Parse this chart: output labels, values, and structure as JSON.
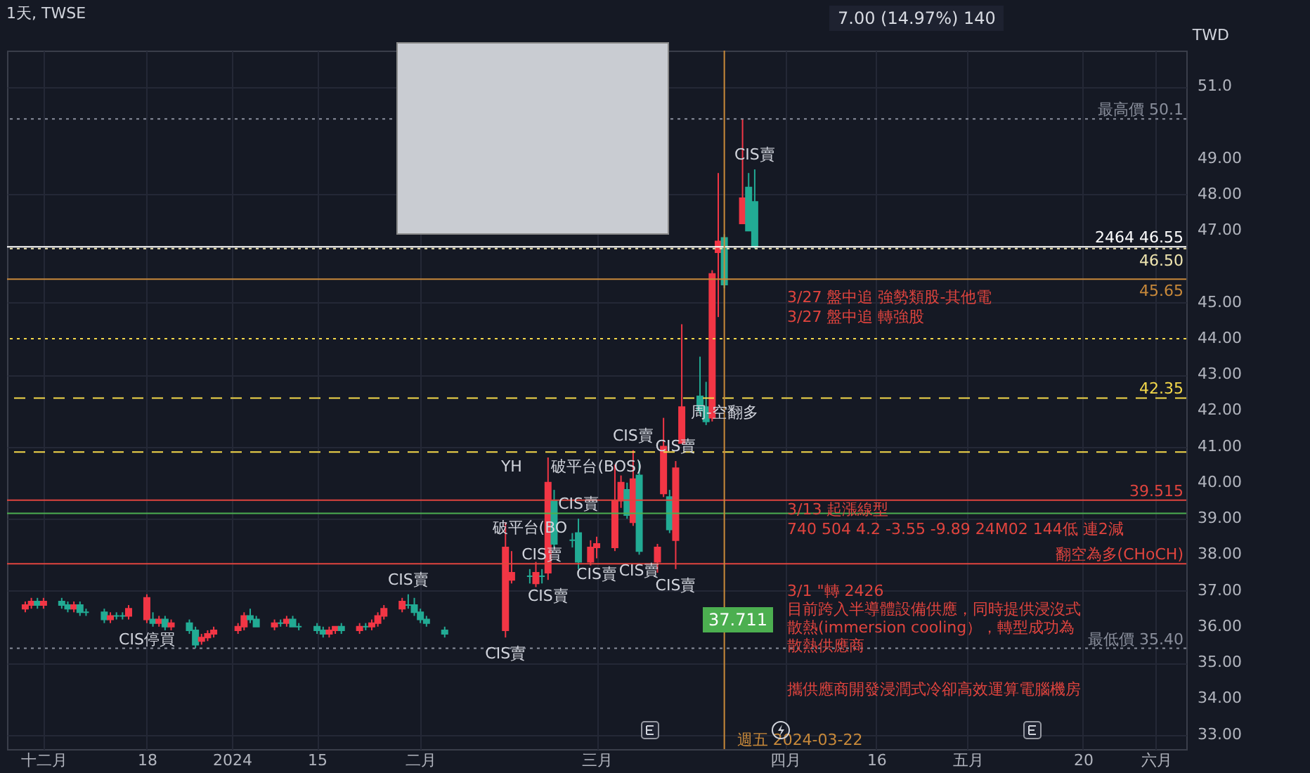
{
  "chart_data": {
    "type": "candlestick",
    "title": "1天, TWSE",
    "ylabel": "TWD",
    "x": [
      "2023-11-28",
      "2023-11-29",
      "2023-11-30",
      "2023-12-01",
      "2023-12-04",
      "2023-12-05",
      "2023-12-06",
      "2023-12-07",
      "2023-12-08",
      "2023-12-11",
      "2023-12-12",
      "2023-12-13",
      "2023-12-14",
      "2023-12-15",
      "2023-12-18",
      "2023-12-19",
      "2023-12-20",
      "2023-12-21",
      "2023-12-22",
      "2023-12-25",
      "2023-12-26",
      "2023-12-27",
      "2023-12-28",
      "2023-12-29",
      "2024-01-02",
      "2024-01-03",
      "2024-01-04",
      "2024-01-05",
      "2024-01-08",
      "2024-01-09",
      "2024-01-10",
      "2024-01-11",
      "2024-01-12",
      "2024-01-15",
      "2024-01-16",
      "2024-01-17",
      "2024-01-18",
      "2024-01-19",
      "2024-01-22",
      "2024-01-23",
      "2024-01-24",
      "2024-01-25",
      "2024-01-26",
      "2024-01-29",
      "2024-01-30",
      "2024-01-31",
      "2024-02-01",
      "2024-02-02",
      "2024-02-05",
      "2024-02-15",
      "2024-02-16",
      "2024-02-19",
      "2024-02-20",
      "2024-02-21",
      "2024-02-22",
      "2024-02-23",
      "2024-02-26",
      "2024-02-27",
      "2024-02-29",
      "2024-03-01",
      "2024-03-04",
      "2024-03-05",
      "2024-03-06",
      "2024-03-07",
      "2024-03-08",
      "2024-03-11",
      "2024-03-12",
      "2024-03-13",
      "2024-03-14",
      "2024-03-15",
      "2024-03-18",
      "2024-03-19",
      "2024-03-20",
      "2024-03-21",
      "2024-03-22",
      "2024-03-25",
      "2024-03-26",
      "2024-03-27"
    ],
    "ohlc": [
      [
        36.5,
        36.7,
        36.4,
        36.6
      ],
      [
        36.6,
        36.8,
        36.5,
        36.7
      ],
      [
        36.7,
        36.8,
        36.5,
        36.6
      ],
      [
        36.6,
        36.8,
        36.5,
        36.7
      ],
      [
        36.7,
        36.8,
        36.5,
        36.6
      ],
      [
        36.6,
        36.7,
        36.4,
        36.5
      ],
      [
        36.5,
        36.7,
        36.4,
        36.6
      ],
      [
        36.6,
        36.7,
        36.3,
        36.4
      ],
      [
        36.4,
        36.5,
        36.3,
        36.4
      ],
      [
        36.4,
        36.5,
        36.1,
        36.2
      ],
      [
        36.2,
        36.4,
        36.1,
        36.3
      ],
      [
        36.3,
        36.4,
        36.2,
        36.3
      ],
      [
        36.3,
        36.4,
        36.2,
        36.3
      ],
      [
        36.3,
        36.6,
        36.2,
        36.5
      ],
      [
        36.2,
        36.9,
        36.1,
        36.8
      ],
      [
        36.2,
        36.4,
        36.0,
        36.1
      ],
      [
        36.1,
        36.3,
        36.0,
        36.2
      ],
      [
        36.2,
        36.3,
        35.9,
        36.0
      ],
      [
        36.0,
        36.2,
        35.9,
        36.1
      ],
      [
        36.1,
        36.2,
        35.8,
        35.9
      ],
      [
        35.9,
        36.0,
        35.4,
        35.5
      ],
      [
        35.6,
        35.8,
        35.5,
        35.7
      ],
      [
        35.7,
        35.9,
        35.6,
        35.8
      ],
      [
        35.8,
        36.0,
        35.7,
        35.9
      ],
      [
        35.9,
        36.1,
        35.8,
        36.0
      ],
      [
        36.0,
        36.4,
        35.9,
        36.3
      ],
      [
        36.3,
        36.5,
        36.1,
        36.2
      ],
      [
        36.2,
        36.3,
        36.0,
        36.0
      ],
      [
        36.0,
        36.2,
        35.9,
        36.1
      ],
      [
        36.1,
        36.2,
        36.0,
        36.1
      ],
      [
        36.1,
        36.3,
        36.0,
        36.2
      ],
      [
        36.2,
        36.3,
        36.0,
        36.0
      ],
      [
        36.0,
        36.1,
        35.9,
        36.0
      ],
      [
        36.0,
        36.1,
        35.8,
        35.9
      ],
      [
        35.9,
        36.0,
        35.7,
        35.8
      ],
      [
        35.8,
        36.0,
        35.7,
        35.9
      ],
      [
        35.9,
        36.0,
        35.8,
        36.0
      ],
      [
        36.0,
        36.1,
        35.8,
        35.9
      ],
      [
        35.9,
        36.1,
        35.8,
        36.0
      ],
      [
        36.0,
        36.1,
        35.9,
        36.0
      ],
      [
        36.0,
        36.2,
        35.9,
        36.1
      ],
      [
        36.1,
        36.4,
        36.0,
        36.3
      ],
      [
        36.3,
        36.6,
        36.2,
        36.5
      ],
      [
        36.5,
        36.8,
        36.4,
        36.7
      ],
      [
        36.6,
        36.9,
        36.5,
        36.6
      ],
      [
        36.6,
        36.8,
        36.3,
        36.4
      ],
      [
        36.4,
        36.5,
        36.1,
        36.2
      ],
      [
        36.2,
        36.3,
        36.0,
        36.1
      ],
      [
        35.9,
        36.0,
        35.7,
        35.8
      ],
      [
        35.9,
        38.9,
        35.7,
        38.2
      ],
      [
        37.3,
        38.1,
        37.2,
        37.5
      ],
      [
        37.4,
        37.6,
        37.2,
        37.4
      ],
      [
        37.2,
        37.8,
        37.1,
        37.5
      ],
      [
        37.4,
        37.6,
        37.2,
        37.4
      ],
      [
        37.5,
        40.7,
        37.3,
        40.0
      ],
      [
        39.5,
        39.8,
        38.2,
        38.3
      ],
      [
        38.4,
        38.6,
        38.2,
        38.4
      ],
      [
        38.6,
        39.0,
        37.6,
        37.8
      ],
      [
        37.8,
        38.4,
        37.7,
        38.2
      ],
      [
        38.2,
        38.5,
        37.9,
        38.3
      ],
      [
        38.2,
        40.5,
        38.1,
        39.5
      ],
      [
        39.5,
        40.2,
        39.3,
        40.0
      ],
      [
        39.8,
        40.0,
        39.0,
        39.1
      ],
      [
        38.9,
        40.9,
        38.8,
        40.1
      ],
      [
        40.2,
        40.6,
        38.0,
        38.1
      ],
      [
        37.8,
        38.3,
        37.5,
        38.2
      ],
      [
        39.7,
        41.8,
        39.6,
        41.0
      ],
      [
        39.6,
        39.8,
        38.6,
        38.7
      ],
      [
        38.4,
        40.6,
        37.6,
        40.4
      ],
      [
        41.1,
        44.4,
        41.1,
        42.1
      ],
      [
        42.4,
        43.5,
        41.9,
        42.0
      ],
      [
        42.1,
        42.8,
        41.6,
        41.7
      ],
      [
        41.8,
        45.9,
        41.7,
        45.8
      ],
      [
        46.4,
        48.6,
        44.6,
        46.7
      ],
      [
        46.8,
        46.9,
        45.4,
        45.5
      ],
      [
        47.2,
        50.1,
        47.2,
        47.9
      ],
      [
        48.2,
        48.6,
        47.0,
        47.0
      ],
      [
        47.8,
        48.7,
        46.5,
        46.55
      ]
    ],
    "colors": [
      "#f23645",
      "#f23645",
      "#22ab94",
      "#f23645",
      "#22ab94",
      "#22ab94",
      "#f23645",
      "#22ab94",
      "#22ab94",
      "#22ab94",
      "#f23645",
      "#22ab94",
      "#22ab94",
      "#f23645",
      "#f23645",
      "#22ab94",
      "#f23645",
      "#22ab94",
      "#f23645",
      "#22ab94",
      "#22ab94",
      "#f23645",
      "#f23645",
      "#f23645",
      "#f23645",
      "#f23645",
      "#22ab94",
      "#22ab94",
      "#f23645",
      "#22ab94",
      "#f23645",
      "#22ab94",
      "#22ab94",
      "#22ab94",
      "#22ab94",
      "#f23645",
      "#f23645",
      "#22ab94",
      "#f23645",
      "#22ab94",
      "#f23645",
      "#f23645",
      "#f23645",
      "#f23645",
      "#22ab94",
      "#22ab94",
      "#22ab94",
      "#22ab94",
      "#22ab94",
      "#f23645",
      "#f23645",
      "#22ab94",
      "#f23645",
      "#22ab94",
      "#f23645",
      "#22ab94",
      "#22ab94",
      "#22ab94",
      "#f23645",
      "#f23645",
      "#f23645",
      "#f23645",
      "#22ab94",
      "#f23645",
      "#22ab94",
      "#f23645",
      "#f23645",
      "#22ab94",
      "#f23645",
      "#f23645",
      "#22ab94",
      "#22ab94",
      "#f23645",
      "#f23645",
      "#22ab94",
      "#f23645",
      "#22ab94",
      "#22ab94"
    ],
    "xlim": [
      "2023-11-25",
      "2024-06-06"
    ],
    "xticks": [
      {
        "value": "2023-12-01",
        "label": "十二月"
      },
      {
        "value": "2023-12-18",
        "label": "18"
      },
      {
        "value": "2024-01-01",
        "label": "2024"
      },
      {
        "value": "2024-01-15",
        "label": "15"
      },
      {
        "value": "2024-02-01",
        "label": "二月"
      },
      {
        "value": "2024-03-01",
        "label": "三月"
      },
      {
        "value": "2024-04-01",
        "label": "四月"
      },
      {
        "value": "2024-04-16",
        "label": "16"
      },
      {
        "value": "2024-05-01",
        "label": "五月"
      },
      {
        "value": "2024-05-20",
        "label": "20"
      },
      {
        "value": "2024-06-01",
        "label": "六月"
      }
    ],
    "ylim": [
      32.6,
      52.0
    ],
    "yticks": [
      {
        "value": 33,
        "label": "33.00"
      },
      {
        "value": 34,
        "label": "34.00"
      },
      {
        "value": 35,
        "label": "35.00"
      },
      {
        "value": 36,
        "label": "36.00"
      },
      {
        "value": 37,
        "label": "37.00"
      },
      {
        "value": 38,
        "label": "38.00"
      },
      {
        "value": 39,
        "label": "39.00"
      },
      {
        "value": 40,
        "label": "40.00"
      },
      {
        "value": 41,
        "label": "41.00"
      },
      {
        "value": 42,
        "label": "42.00"
      },
      {
        "value": 43,
        "label": "43.00"
      },
      {
        "value": 44,
        "label": "44.00"
      },
      {
        "value": 45,
        "label": "45.00"
      },
      {
        "value": 47,
        "label": "47.00"
      },
      {
        "value": 48,
        "label": "48.00"
      },
      {
        "value": 49,
        "label": "49.00"
      },
      {
        "value": 51,
        "label": "51.0"
      }
    ],
    "grid": true,
    "ref_lines": [
      {
        "axis": "y",
        "value": 50.1,
        "label": "最高價 50.1",
        "color": "#8a8f9c",
        "line_style": "dotted"
      },
      {
        "axis": "y",
        "value": 46.55,
        "label": "2464 46.55",
        "color": "#ffffff",
        "line_style": "solid"
      },
      {
        "axis": "y",
        "value": 46.5,
        "label": "46.50",
        "color": "#f0e6b0",
        "line_style": "dotted"
      },
      {
        "axis": "y",
        "value": 45.65,
        "label": "45.65",
        "color": "#c8893a",
        "line_style": "solid"
      },
      {
        "axis": "y",
        "value": 44.0,
        "color": "#f5d94a",
        "line_style": "dotted"
      },
      {
        "axis": "y",
        "value": 42.35,
        "label": "42.35",
        "color": "#f5d94a",
        "line_style": "dashed"
      },
      {
        "axis": "y",
        "value": 40.85,
        "color": "#f5d94a",
        "line_style": "dashed"
      },
      {
        "axis": "y",
        "value": 39.15,
        "color": "#4caf50",
        "line_style": "solid"
      },
      {
        "axis": "y",
        "value": 39.515,
        "label": "39.515",
        "color": "#e0443e",
        "line_style": "solid"
      },
      {
        "axis": "y",
        "value": 37.75,
        "label": "翻空為多(CHoCH)",
        "color": "#e0443e",
        "line_style": "solid"
      },
      {
        "axis": "y",
        "value": 35.4,
        "label": "最低價 35.40",
        "color": "#8a8f9c",
        "line_style": "dotted"
      },
      {
        "axis": "x",
        "value": "2024-03-22",
        "label": "週五 2024-03-22",
        "color": "#c8893a",
        "line_style": "solid"
      }
    ],
    "annotations": [
      "7.00 (14.97%) 140",
      "3/27 盤中追  強勢類股-其他電",
      "3/27 盤中追  轉強股",
      "3/13  起漲線型",
      "740 504 4.2 -3.55 -9.89 24M02 144低 連2減",
      "3/1  \"轉 2426",
      "目前跨入半導體設備供應，同時提供浸沒式散熱(immersion cooling），轉型成功為散熱供應商",
      "攜供應商開發浸潤式冷卻高效運算電腦機房",
      "37.711",
      {
        "text": "CIS停買",
        "x": "2023-12-18",
        "y": 36.1
      },
      {
        "text": "CIS賣",
        "x": "2024-01-30",
        "y": 36.9
      },
      {
        "text": "CIS賣",
        "x": "2024-02-15",
        "y": 35.7
      },
      {
        "text": "CIS賣",
        "x": "2024-02-21",
        "y": 37.6
      },
      {
        "text": "CIS賣",
        "x": "2024-02-22",
        "y": 37.3
      },
      {
        "text": "CIS賣",
        "x": "2024-02-27",
        "y": 39.0
      },
      {
        "text": "CIS賣",
        "x": "2024-03-01",
        "y": 37.9
      },
      {
        "text": "CIS賣",
        "x": "2024-03-07",
        "y": 40.9
      },
      {
        "text": "CIS賣",
        "x": "2024-03-08",
        "y": 38.0
      },
      {
        "text": "CIS賣",
        "x": "2024-03-14",
        "y": 40.6
      },
      {
        "text": "CIS賣",
        "x": "2024-03-14",
        "y": 37.6
      },
      {
        "text": "CIS賣",
        "x": "2024-03-27",
        "y": 48.7
      },
      {
        "text": "YH",
        "x": "2024-02-16",
        "y": 40.85
      },
      {
        "text": "破平台(BOS)",
        "x": "2024-03-01",
        "y": 40.85
      },
      {
        "text": "破平台(BO",
        "x": "2024-02-19",
        "y": 39.15
      },
      {
        "text": "周-空翻多",
        "x": "2024-03-22",
        "y": 42.35
      }
    ]
  }
}
